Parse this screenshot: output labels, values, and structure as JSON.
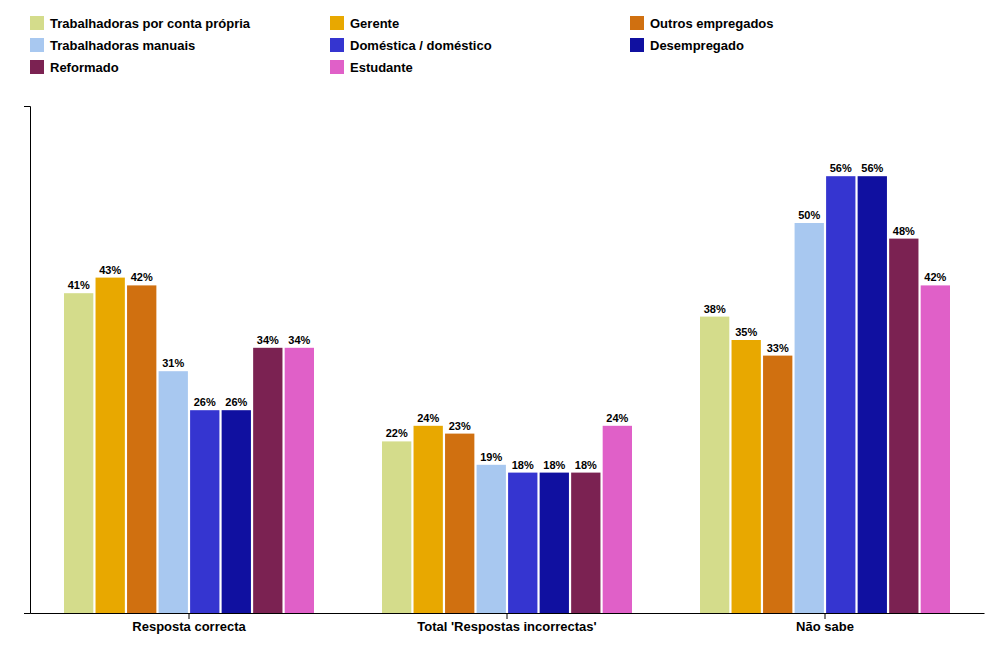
{
  "chart_data": {
    "type": "bar",
    "categories": [
      "Resposta correcta",
      "Total 'Respostas incorrectas'",
      "Não sabe"
    ],
    "series": [
      {
        "name": "Trabalhadoras por conta própria",
        "color": "#d4dc8b",
        "values": [
          41,
          22,
          38
        ],
        "value_labels": [
          "41%",
          "22%",
          "38%"
        ]
      },
      {
        "name": "Gerente",
        "color": "#e8a800",
        "values": [
          43,
          24,
          35
        ],
        "value_labels": [
          "43%",
          "24%",
          "35%"
        ]
      },
      {
        "name": "Outros empregados",
        "color": "#d07010",
        "values": [
          42,
          23,
          33
        ],
        "value_labels": [
          "42%",
          "23%",
          "33%"
        ]
      },
      {
        "name": "Trabalhadoras manuais",
        "color": "#a8c8f0",
        "values": [
          31,
          19,
          50
        ],
        "value_labels": [
          "31%",
          "19%",
          "50%"
        ]
      },
      {
        "name": "Doméstica / doméstico",
        "color": "#3535d0",
        "values": [
          26,
          18,
          56
        ],
        "value_labels": [
          "26%",
          "18%",
          "56%"
        ]
      },
      {
        "name": "Desempregado",
        "color": "#1010a0",
        "values": [
          26,
          18,
          56
        ],
        "value_labels": [
          "26%",
          "18%",
          "56%"
        ]
      },
      {
        "name": "Reformado",
        "color": "#7b2252",
        "values": [
          34,
          18,
          48
        ],
        "value_labels": [
          "34%",
          "18%",
          "48%"
        ]
      },
      {
        "name": "Estudante",
        "color": "#e060c8",
        "values": [
          34,
          24,
          42
        ],
        "value_labels": [
          "34%",
          "24%",
          "42%"
        ]
      }
    ],
    "ylim": [
      0,
      65
    ],
    "yticks": [],
    "data_labels": true,
    "tick_labels": "x",
    "legend": "top-left",
    "grid": false
  }
}
